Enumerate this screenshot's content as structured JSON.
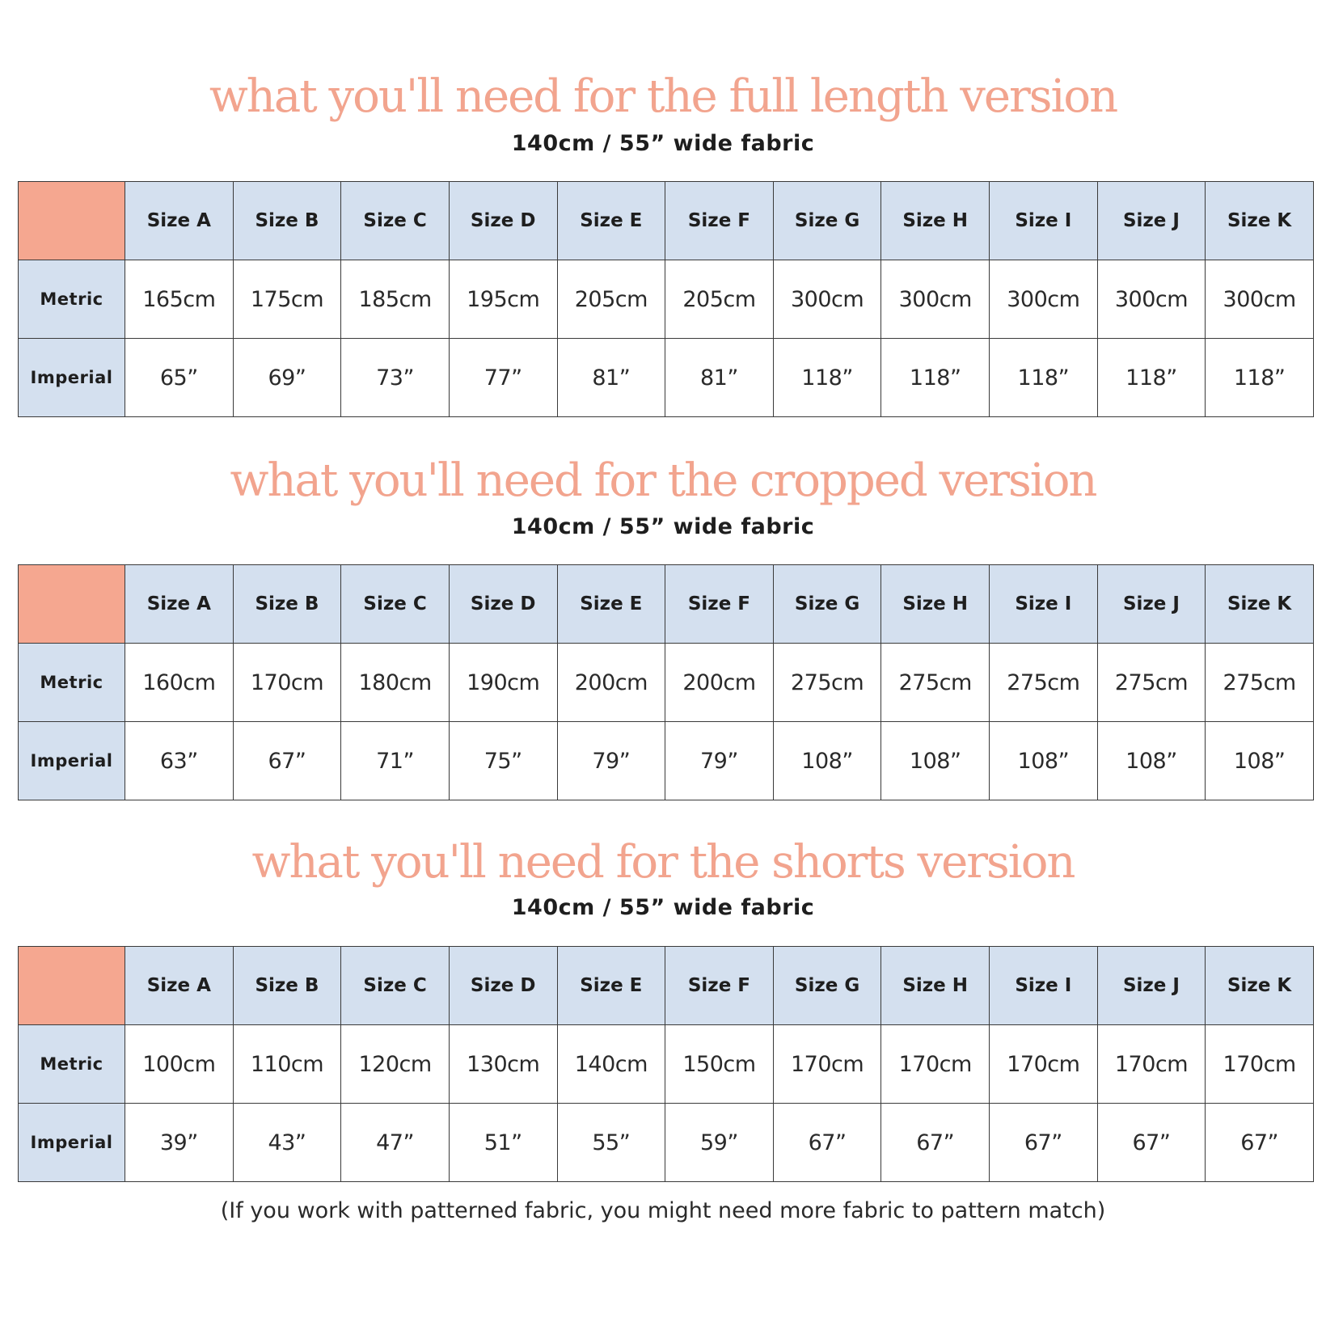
{
  "columns": [
    "Size A",
    "Size B",
    "Size C",
    "Size D",
    "Size E",
    "Size F",
    "Size G",
    "Size H",
    "Size I",
    "Size J",
    "Size K"
  ],
  "row_labels": {
    "metric": "Metric",
    "imperial": "Imperial"
  },
  "colors": {
    "heading": "#f2a48e",
    "corner": "#f5a790",
    "header_bg": "#d4e0ef"
  },
  "sections": [
    {
      "title": "what you'll need for the full length version",
      "subtitle": "140cm / 55” wide fabric",
      "metric": [
        "165cm",
        "175cm",
        "185cm",
        "195cm",
        "205cm",
        "205cm",
        "300cm",
        "300cm",
        "300cm",
        "300cm",
        "300cm"
      ],
      "imperial": [
        "65”",
        "69”",
        "73”",
        "77”",
        "81”",
        "81”",
        "118”",
        "118”",
        "118”",
        "118”",
        "118”"
      ]
    },
    {
      "title": "what you'll need for the cropped version",
      "subtitle": "140cm / 55” wide fabric",
      "metric": [
        "160cm",
        "170cm",
        "180cm",
        "190cm",
        "200cm",
        "200cm",
        "275cm",
        "275cm",
        "275cm",
        "275cm",
        "275cm"
      ],
      "imperial": [
        "63”",
        "67”",
        "71”",
        "75”",
        "79”",
        "79”",
        "108”",
        "108”",
        "108”",
        "108”",
        "108”"
      ]
    },
    {
      "title": "what you'll need for the shorts version",
      "subtitle": "140cm / 55” wide fabric",
      "metric": [
        "100cm",
        "110cm",
        "120cm",
        "130cm",
        "140cm",
        "150cm",
        "170cm",
        "170cm",
        "170cm",
        "170cm",
        "170cm"
      ],
      "imperial": [
        "39”",
        "43”",
        "47”",
        "51”",
        "55”",
        "59”",
        "67”",
        "67”",
        "67”",
        "67”",
        "67”"
      ]
    }
  ],
  "footnote": "(If you work with patterned fabric, you might need more fabric to pattern match)"
}
